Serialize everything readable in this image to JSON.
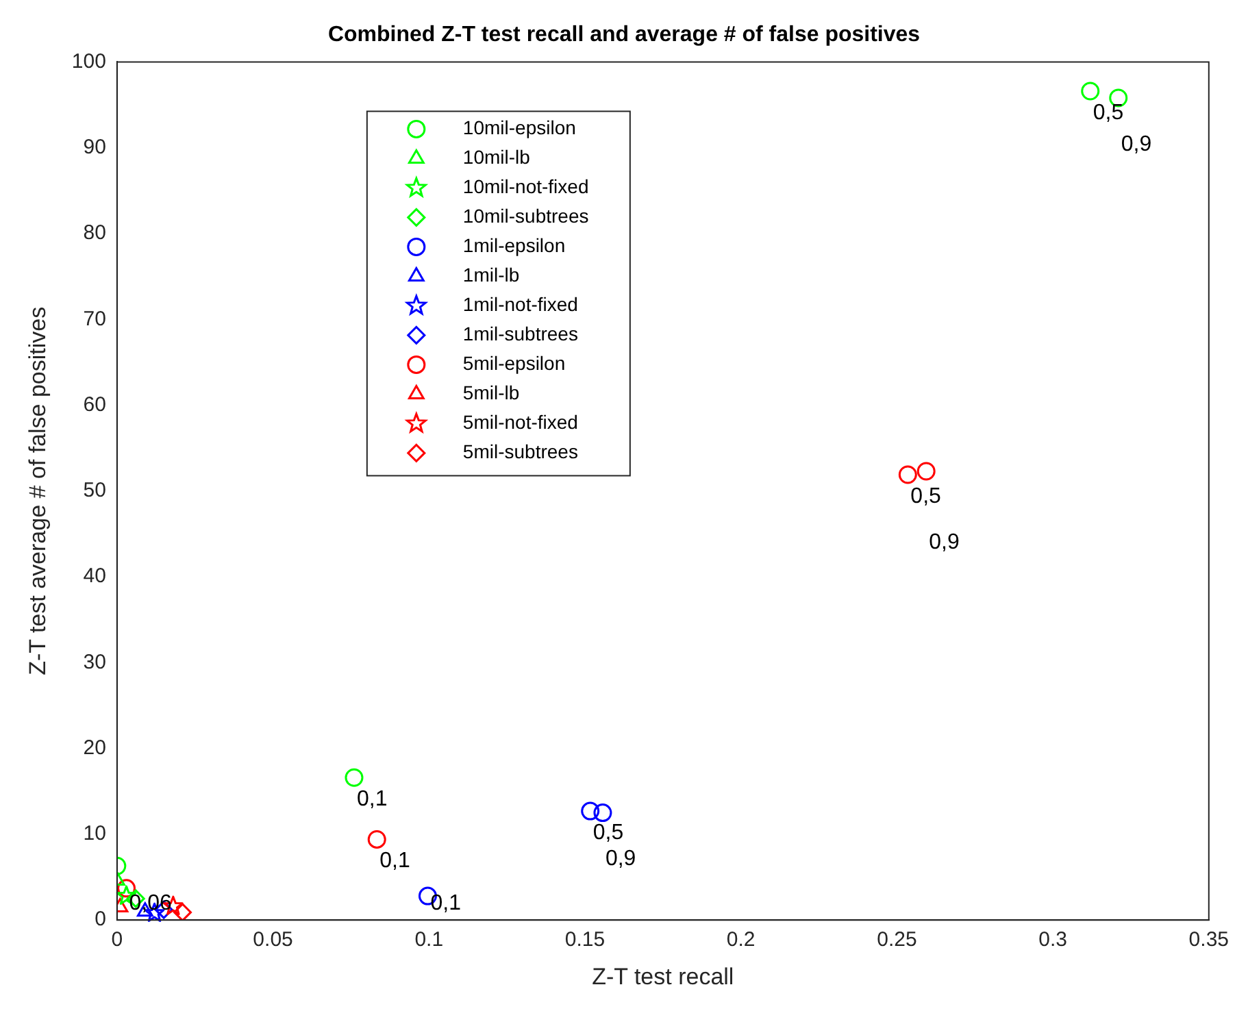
{
  "chart_data": {
    "type": "scatter",
    "title": "Combined Z-T test recall and average # of false positives",
    "xlabel": "Z-T test recall",
    "ylabel": "Z-T test average # of false positives",
    "xlim": [
      0,
      0.35
    ],
    "xticks": [
      0,
      0.05,
      0.1,
      0.15,
      0.2,
      0.25,
      0.3,
      0.35
    ],
    "ylim": [
      0,
      100
    ],
    "yticks": [
      0,
      10,
      20,
      30,
      40,
      50,
      60,
      70,
      80,
      90,
      100
    ],
    "grid": false,
    "legend": "top",
    "series": [
      {
        "name": "10mil-epsilon",
        "color": "#00ff00",
        "marker": "circle",
        "x": [
          0,
          0.076,
          0.312,
          0.321
        ],
        "values": [
          6.3,
          16.6,
          96.6,
          95.8
        ]
      },
      {
        "name": "10mil-lb",
        "color": "#00ff00",
        "marker": "triangle",
        "x": [
          0
        ],
        "values": [
          4.6
        ]
      },
      {
        "name": "10mil-not-fixed",
        "color": "#00ff00",
        "marker": "star",
        "x": [
          0.003
        ],
        "values": [
          2.8
        ]
      },
      {
        "name": "10mil-subtrees",
        "color": "#00ff00",
        "marker": "diamond",
        "x": [
          0.006
        ],
        "values": [
          2.5
        ]
      },
      {
        "name": "1mil-epsilon",
        "color": "#0000ff",
        "marker": "circle",
        "x": [
          0.0996,
          0.1517,
          0.1557
        ],
        "values": [
          2.8,
          12.7,
          12.5
        ]
      },
      {
        "name": "1mil-lb",
        "color": "#0000ff",
        "marker": "triangle",
        "x": [
          0.009
        ],
        "values": [
          1
        ]
      },
      {
        "name": "1mil-not-fixed",
        "color": "#0000ff",
        "marker": "star",
        "x": [
          0.012
        ],
        "values": [
          0.8
        ]
      },
      {
        "name": "1mil-subtrees",
        "color": "#0000ff",
        "marker": "diamond",
        "x": [
          0.015
        ],
        "values": [
          1.2
        ]
      },
      {
        "name": "5mil-epsilon",
        "color": "#ff0000",
        "marker": "circle",
        "x": [
          0.003,
          0.0833,
          0.2535,
          0.2594
        ],
        "values": [
          3.7,
          9.4,
          51.9,
          52.3
        ]
      },
      {
        "name": "5mil-lb",
        "color": "#ff0000",
        "marker": "triangle",
        "x": [
          0.001
        ],
        "values": [
          1.5
        ]
      },
      {
        "name": "5mil-not-fixed",
        "color": "#ff0000",
        "marker": "star",
        "x": [
          0.018
        ],
        "values": [
          1.6
        ]
      },
      {
        "name": "5mil-subtrees",
        "color": "#ff0000",
        "marker": "diamond",
        "x": [
          0.021
        ],
        "values": [
          0.9
        ]
      }
    ],
    "annotations": [
      {
        "text": "0,1",
        "x": 0.076,
        "y": 16.6
      },
      {
        "text": "0,5",
        "x": 0.312,
        "y": 96.6
      },
      {
        "text": "0,9",
        "x": 0.321,
        "y": 95.8
      },
      {
        "text": "0,1",
        "x": 0.0996,
        "y": 2.8
      },
      {
        "text": "0,5",
        "x": 0.1517,
        "y": 12.7
      },
      {
        "text": "0,9",
        "x": 0.1557,
        "y": 12.5
      },
      {
        "text": "0,1",
        "x": 0.0833,
        "y": 9.4
      },
      {
        "text": "0,5",
        "x": 0.2535,
        "y": 51.9
      },
      {
        "text": "0,9",
        "x": 0.2594,
        "y": 52.3
      },
      {
        "text": "0,06",
        "x": 0.003,
        "y": 3.7
      }
    ]
  }
}
